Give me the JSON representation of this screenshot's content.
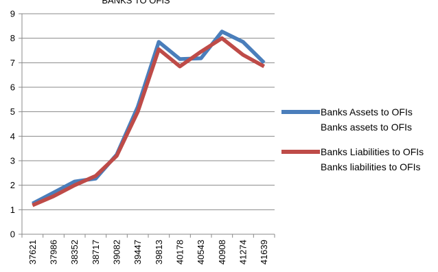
{
  "chart_data": {
    "type": "line",
    "title": "",
    "title_visible_fragment": "BANKS TO OFIS",
    "xlabel": "",
    "ylabel": "",
    "categories": [
      "37621",
      "37986",
      "38352",
      "38717",
      "39082",
      "39447",
      "39813",
      "40178",
      "40543",
      "40908",
      "41274",
      "41639"
    ],
    "ylim": [
      0,
      9
    ],
    "yticks": [
      "0",
      "1",
      "2",
      "3",
      "4",
      "5",
      "6",
      "7",
      "8",
      "9"
    ],
    "grid": "horizontal",
    "legend_position": "right",
    "series": [
      {
        "name": "Banks Assets to OFIs",
        "name_secondary": "Banks assets to OFIs",
        "color": "#4a7ebb",
        "values": [
          1.25,
          1.7,
          2.15,
          2.27,
          3.25,
          5.2,
          7.85,
          7.15,
          7.18,
          8.27,
          7.85,
          7.0
        ]
      },
      {
        "name": "Banks Liabilities to OFIs",
        "name_secondary": "Banks liabilities to OFIs",
        "color": "#be4b48",
        "values": [
          1.18,
          1.55,
          2.0,
          2.38,
          3.2,
          5.0,
          7.55,
          6.85,
          7.45,
          8.0,
          7.32,
          6.85
        ]
      }
    ]
  }
}
